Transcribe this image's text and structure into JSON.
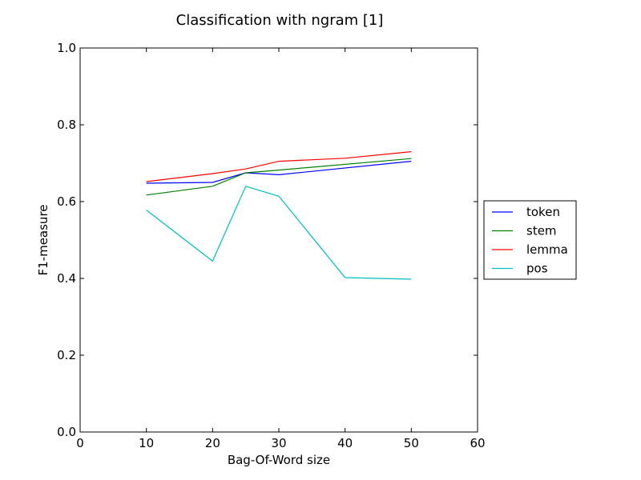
{
  "chart_data": {
    "type": "line",
    "title": "Classification with ngram [1]",
    "xlabel": "Bag-Of-Word size",
    "ylabel": "F1-measure",
    "xlim": [
      0,
      60
    ],
    "ylim": [
      0.0,
      1.0
    ],
    "xticks": [
      0,
      10,
      20,
      30,
      40,
      50,
      60
    ],
    "yticks": [
      0.0,
      0.2,
      0.4,
      0.6,
      0.8,
      1.0
    ],
    "xtick_labels": [
      "0",
      "10",
      "20",
      "30",
      "40",
      "50",
      "60"
    ],
    "ytick_labels": [
      "0.0",
      "0.2",
      "0.4",
      "0.6",
      "0.8",
      "1.0"
    ],
    "grid": false,
    "legend_position": "right, outside plot",
    "series": [
      {
        "name": "token",
        "color": "#0000ff",
        "x": [
          10,
          20,
          25,
          30,
          50
        ],
        "y": [
          0.648,
          0.65,
          0.675,
          0.67,
          0.705
        ]
      },
      {
        "name": "stem",
        "color": "#008000",
        "x": [
          10,
          20,
          25,
          30,
          50
        ],
        "y": [
          0.617,
          0.64,
          0.675,
          0.682,
          0.712
        ]
      },
      {
        "name": "lemma",
        "color": "#ff0000",
        "x": [
          10,
          20,
          25,
          30,
          40,
          50
        ],
        "y": [
          0.652,
          0.673,
          0.685,
          0.705,
          0.713,
          0.73
        ]
      },
      {
        "name": "pos",
        "color": "#00bfbf",
        "x": [
          10,
          20,
          25,
          30,
          40,
          50
        ],
        "y": [
          0.578,
          0.445,
          0.64,
          0.614,
          0.402,
          0.398
        ]
      }
    ]
  }
}
